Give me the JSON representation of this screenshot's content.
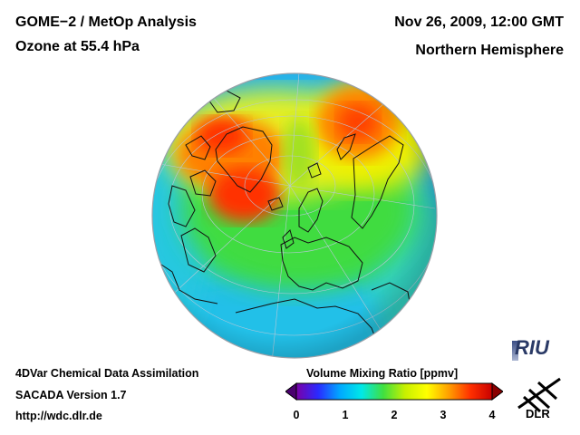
{
  "header": {
    "title_line1": "GOME−2 / MetOp Analysis",
    "title_line2": "Ozone at 55.4 hPa",
    "date": "Nov 26, 2009, 12:00 GMT",
    "region": "Northern Hemisphere"
  },
  "footer": {
    "method": "4DVar Chemical Data Assimilation",
    "version": "SACADA Version 1.7",
    "url": "http://wdc.dlr.de"
  },
  "colorbar": {
    "title": "Volume Mixing Ratio [ppmv]",
    "ticks": [
      "0",
      "1",
      "2",
      "3",
      "4"
    ],
    "range": [
      0,
      4
    ],
    "colors": [
      "#7a00a8",
      "#2a2aff",
      "#00a8ff",
      "#00e8e8",
      "#40e040",
      "#c8f000",
      "#ffff00",
      "#ffa000",
      "#ff3000",
      "#c80000"
    ]
  },
  "logos": {
    "riu": "RIU",
    "dlr": "DLR"
  },
  "map": {
    "projection": "orthographic",
    "hemisphere": "Northern Hemisphere",
    "icon_names": [
      "globe-map",
      "riu-logo",
      "dlr-logo"
    ]
  }
}
